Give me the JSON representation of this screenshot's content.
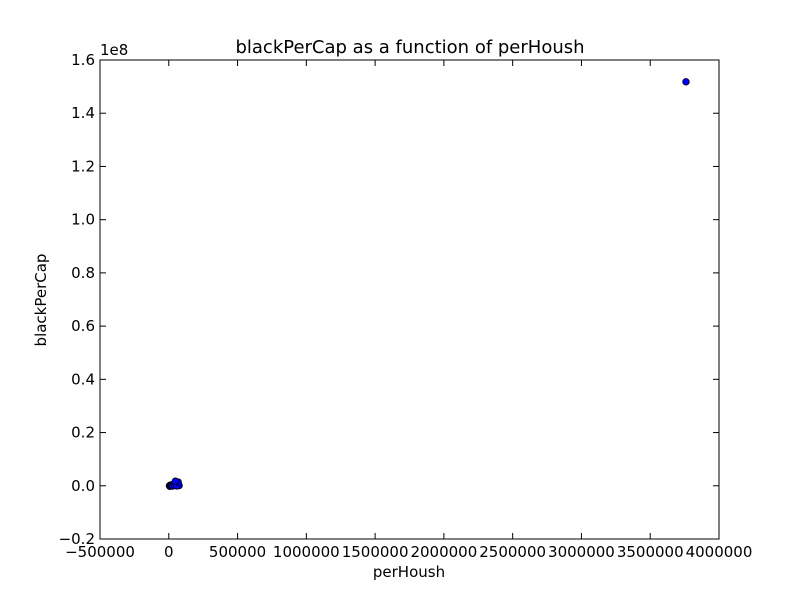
{
  "chart_data": {
    "type": "scatter",
    "title": "blackPerCap as a function of perHoush",
    "xlabel": "perHoush",
    "ylabel": "blackPerCap",
    "y_offset_label": "1e8",
    "xlim": [
      -500000,
      4000000
    ],
    "ylim": [
      -20000000,
      160000000
    ],
    "x_ticks": [
      -500000,
      0,
      500000,
      1000000,
      1500000,
      2000000,
      2500000,
      3000000,
      3500000,
      4000000
    ],
    "x_tick_labels": [
      "−500000",
      "0",
      "500000",
      "1000000",
      "1500000",
      "2000000",
      "2500000",
      "3000000",
      "3500000",
      "4000000"
    ],
    "y_ticks": [
      -20000000,
      0,
      20000000,
      40000000,
      60000000,
      80000000,
      100000000,
      120000000,
      140000000,
      160000000
    ],
    "y_tick_labels": [
      "−0.2",
      "0.0",
      "0.2",
      "0.4",
      "0.6",
      "0.8",
      "1.0",
      "1.2",
      "1.4",
      "1.6"
    ],
    "grid": false,
    "marker_color": "#0000ff",
    "marker_edge_color": "#000000",
    "points": [
      {
        "x": 3760000,
        "y": 151800000
      },
      {
        "x": 5000,
        "y": 0
      },
      {
        "x": 10000,
        "y": 200000
      },
      {
        "x": 15000,
        "y": -100000
      },
      {
        "x": 20000,
        "y": 300000
      },
      {
        "x": 25000,
        "y": 0
      },
      {
        "x": 30000,
        "y": 500000
      },
      {
        "x": 35000,
        "y": 200000
      },
      {
        "x": 40000,
        "y": 800000
      },
      {
        "x": 45000,
        "y": 400000
      },
      {
        "x": 50000,
        "y": 1200000
      },
      {
        "x": 55000,
        "y": 600000
      },
      {
        "x": 60000,
        "y": 900000
      },
      {
        "x": 65000,
        "y": 300000
      },
      {
        "x": 70000,
        "y": 500000
      },
      {
        "x": 75000,
        "y": 100000
      },
      {
        "x": 8000,
        "y": -200000
      },
      {
        "x": 12000,
        "y": 100000
      },
      {
        "x": 18000,
        "y": 0
      },
      {
        "x": 28000,
        "y": -100000
      },
      {
        "x": 42000,
        "y": 200000
      },
      {
        "x": 58000,
        "y": -50000
      },
      {
        "x": 68000,
        "y": 1400000
      },
      {
        "x": 48000,
        "y": 1700000
      }
    ]
  }
}
